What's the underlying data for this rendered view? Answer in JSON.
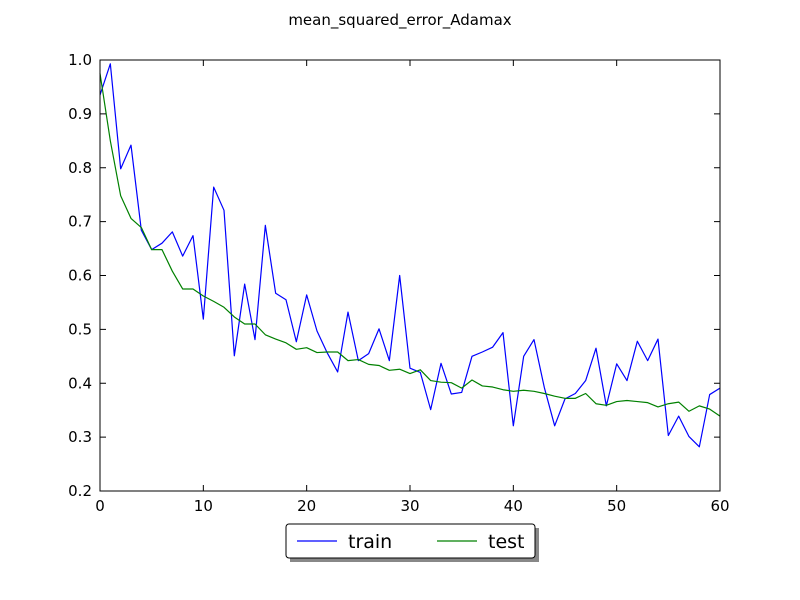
{
  "chart_data": {
    "type": "line",
    "title": "mean_squared_error_Adamax",
    "xlabel": "",
    "ylabel": "",
    "xlim": [
      0,
      60
    ],
    "ylim": [
      0.2,
      1.0
    ],
    "xticks": [
      0,
      10,
      20,
      30,
      40,
      50,
      60
    ],
    "xtick_labels": [
      "0",
      "10",
      "20",
      "30",
      "40",
      "50",
      "60"
    ],
    "yticks": [
      0.2,
      0.3,
      0.4,
      0.5,
      0.6,
      0.7,
      0.8,
      0.9,
      1.0
    ],
    "ytick_labels": [
      "0.2",
      "0.3",
      "0.4",
      "0.5",
      "0.6",
      "0.7",
      "0.8",
      "0.9",
      "1.0"
    ],
    "grid": false,
    "legend_position": "bottom-center",
    "series": [
      {
        "name": "train",
        "color": "#0000ff",
        "x": [
          0,
          1,
          2,
          3,
          4,
          5,
          6,
          7,
          8,
          9,
          10,
          11,
          12,
          13,
          14,
          15,
          16,
          17,
          18,
          19,
          20,
          21,
          22,
          23,
          24,
          25,
          26,
          27,
          28,
          29,
          30,
          31,
          32,
          33,
          34,
          35,
          36,
          37,
          38,
          39,
          40,
          41,
          42,
          43,
          44,
          45,
          46,
          47,
          48,
          49,
          50,
          51,
          52,
          53,
          54,
          55,
          56,
          57,
          58,
          59,
          60
        ],
        "values": [
          0.935,
          0.993,
          0.798,
          0.842,
          0.684,
          0.648,
          0.66,
          0.681,
          0.636,
          0.674,
          0.519,
          0.764,
          0.721,
          0.451,
          0.584,
          0.481,
          0.693,
          0.567,
          0.555,
          0.477,
          0.564,
          0.497,
          0.456,
          0.421,
          0.532,
          0.442,
          0.455,
          0.501,
          0.442,
          0.6,
          0.428,
          0.42,
          0.351,
          0.437,
          0.38,
          0.383,
          0.45,
          0.458,
          0.467,
          0.494,
          0.321,
          0.45,
          0.481,
          0.392,
          0.321,
          0.371,
          0.381,
          0.405,
          0.465,
          0.358,
          0.436,
          0.405,
          0.478,
          0.442,
          0.482,
          0.303,
          0.339,
          0.301,
          0.282,
          0.379,
          0.391
        ]
      },
      {
        "name": "test",
        "color": "#008000",
        "x": [
          0,
          1,
          2,
          3,
          4,
          5,
          6,
          7,
          8,
          9,
          10,
          11,
          12,
          13,
          14,
          15,
          16,
          17,
          18,
          19,
          20,
          21,
          22,
          23,
          24,
          25,
          26,
          27,
          28,
          29,
          30,
          31,
          32,
          33,
          34,
          35,
          36,
          37,
          38,
          39,
          40,
          41,
          42,
          43,
          44,
          45,
          46,
          47,
          48,
          49,
          50,
          51,
          52,
          53,
          54,
          55,
          56,
          57,
          58,
          59,
          60
        ],
        "values": [
          0.975,
          0.85,
          0.748,
          0.706,
          0.689,
          0.648,
          0.648,
          0.608,
          0.575,
          0.575,
          0.562,
          0.552,
          0.541,
          0.523,
          0.51,
          0.51,
          0.49,
          0.482,
          0.475,
          0.463,
          0.466,
          0.457,
          0.458,
          0.458,
          0.442,
          0.444,
          0.435,
          0.433,
          0.424,
          0.426,
          0.418,
          0.425,
          0.405,
          0.402,
          0.401,
          0.391,
          0.406,
          0.395,
          0.393,
          0.388,
          0.385,
          0.387,
          0.385,
          0.381,
          0.376,
          0.372,
          0.372,
          0.381,
          0.362,
          0.359,
          0.366,
          0.368,
          0.366,
          0.364,
          0.356,
          0.362,
          0.365,
          0.348,
          0.358,
          0.352,
          0.339
        ]
      }
    ]
  }
}
